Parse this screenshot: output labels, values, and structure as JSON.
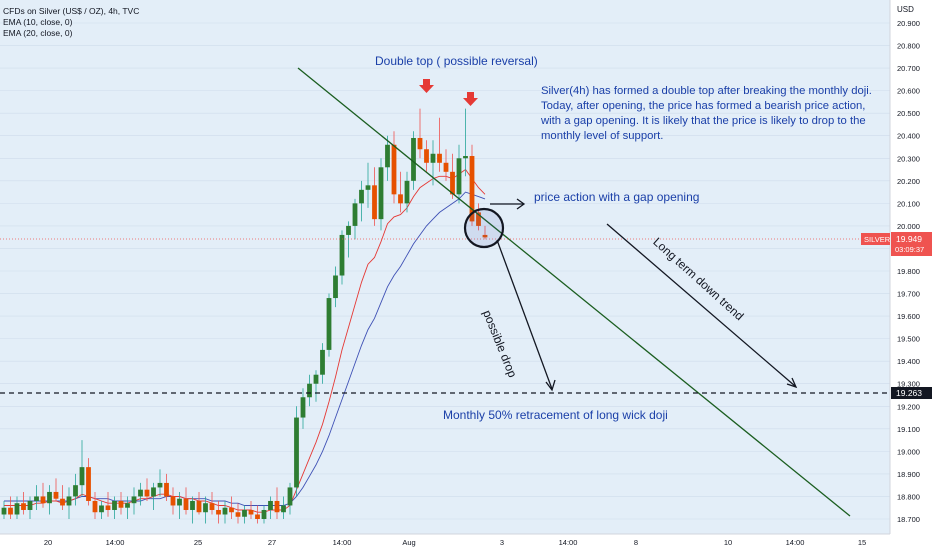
{
  "header": {
    "title": "CFDs on Silver (US$ / OZ), 4h, TVC",
    "indicators": [
      "EMA (10, close, 0)",
      "EMA (20, close, 0)"
    ]
  },
  "annotations": {
    "double_top": "Double top ( possible reversal)",
    "description": "Silver(4h) has formed a double top after breaking the monthly doji. Today, after opening, the price has formed a bearish price action, with a gap opening. It is likely that the price is likely to drop to the monthly level of support.",
    "gap": "price action with a gap opening",
    "drop": "possible drop",
    "trend": "Long term down trend",
    "support": "Monthly 50% retracement of long wick doji"
  },
  "price_labels": {
    "currency": "USD",
    "symbol": "SILVER",
    "last_price": "19.949",
    "countdown": "03:09:37",
    "support_level": "19.263"
  },
  "colors": {
    "up": "#26a69a",
    "up_body": "#2e7d32",
    "down": "#ef5350",
    "down_body": "#e65100",
    "ema10": "#e53935",
    "ema20": "#3f51b5",
    "background": "#e3eef8",
    "annotation": "#1a3fa8",
    "trendline": "#1b5e20"
  },
  "chart_data": {
    "type": "candlestick",
    "y_axis": {
      "min": 18.7,
      "max": 20.9,
      "ticks": [
        "18.700",
        "18.800",
        "18.900",
        "19.000",
        "19.100",
        "19.200",
        "19.300",
        "19.400",
        "19.500",
        "19.600",
        "19.700",
        "19.800",
        "19.900",
        "20.000",
        "20.100",
        "20.200",
        "20.300",
        "20.400",
        "20.500",
        "20.600",
        "20.700",
        "20.800",
        "20.900"
      ]
    },
    "x_axis": {
      "ticks": [
        "20",
        "14:00",
        "25",
        "27",
        "14:00",
        "Aug",
        "3",
        "14:00",
        "8",
        "10",
        "14:00",
        "15"
      ]
    },
    "ohlc": [
      [
        18.72,
        18.78,
        18.7,
        18.75
      ],
      [
        18.75,
        18.8,
        18.7,
        18.72
      ],
      [
        18.72,
        18.8,
        18.7,
        18.77
      ],
      [
        18.77,
        18.82,
        18.72,
        18.74
      ],
      [
        18.74,
        18.8,
        18.7,
        18.78
      ],
      [
        18.78,
        18.85,
        18.74,
        18.8
      ],
      [
        18.8,
        18.86,
        18.75,
        18.77
      ],
      [
        18.77,
        18.85,
        18.72,
        18.82
      ],
      [
        18.82,
        18.88,
        18.78,
        18.79
      ],
      [
        18.79,
        18.85,
        18.74,
        18.76
      ],
      [
        18.76,
        18.84,
        18.7,
        18.8
      ],
      [
        18.8,
        18.9,
        18.76,
        18.85
      ],
      [
        18.85,
        19.05,
        18.8,
        18.93
      ],
      [
        18.93,
        18.97,
        18.76,
        18.78
      ],
      [
        18.78,
        18.82,
        18.7,
        18.73
      ],
      [
        18.73,
        18.78,
        18.7,
        18.76
      ],
      [
        18.76,
        18.82,
        18.71,
        18.74
      ],
      [
        18.74,
        18.8,
        18.7,
        18.78
      ],
      [
        18.78,
        18.82,
        18.72,
        18.75
      ],
      [
        18.75,
        18.8,
        18.7,
        18.77
      ],
      [
        18.77,
        18.84,
        18.72,
        18.8
      ],
      [
        18.8,
        18.86,
        18.76,
        18.83
      ],
      [
        18.83,
        18.88,
        18.78,
        18.8
      ],
      [
        18.8,
        18.86,
        18.74,
        18.84
      ],
      [
        18.84,
        18.92,
        18.8,
        18.86
      ],
      [
        18.86,
        18.9,
        18.78,
        18.8
      ],
      [
        18.8,
        18.84,
        18.72,
        18.76
      ],
      [
        18.76,
        18.82,
        18.7,
        18.79
      ],
      [
        18.79,
        18.84,
        18.72,
        18.74
      ],
      [
        18.74,
        18.8,
        18.68,
        18.78
      ],
      [
        18.78,
        18.82,
        18.72,
        18.73
      ],
      [
        18.73,
        18.8,
        18.68,
        18.77
      ],
      [
        18.77,
        18.82,
        18.72,
        18.74
      ],
      [
        18.74,
        18.78,
        18.68,
        18.72
      ],
      [
        18.72,
        18.78,
        18.68,
        18.75
      ],
      [
        18.75,
        18.8,
        18.7,
        18.73
      ],
      [
        18.73,
        18.77,
        18.68,
        18.71
      ],
      [
        18.71,
        18.76,
        18.68,
        18.74
      ],
      [
        18.74,
        18.78,
        18.7,
        18.72
      ],
      [
        18.72,
        18.76,
        18.68,
        18.7
      ],
      [
        18.7,
        18.76,
        18.68,
        18.74
      ],
      [
        18.74,
        18.8,
        18.7,
        18.78
      ],
      [
        18.78,
        18.84,
        18.7,
        18.73
      ],
      [
        18.73,
        18.8,
        18.7,
        18.76
      ],
      [
        18.76,
        18.86,
        18.72,
        18.84
      ],
      [
        18.84,
        19.2,
        18.8,
        19.15
      ],
      [
        19.15,
        19.28,
        19.1,
        19.24
      ],
      [
        19.24,
        19.34,
        19.2,
        19.3
      ],
      [
        19.3,
        19.36,
        19.22,
        19.34
      ],
      [
        19.34,
        19.48,
        19.3,
        19.45
      ],
      [
        19.45,
        19.7,
        19.42,
        19.68
      ],
      [
        19.68,
        19.82,
        19.64,
        19.78
      ],
      [
        19.78,
        19.98,
        19.74,
        19.96
      ],
      [
        19.96,
        20.02,
        19.86,
        20.0
      ],
      [
        20.0,
        20.12,
        19.94,
        20.1
      ],
      [
        20.1,
        20.2,
        20.02,
        20.16
      ],
      [
        20.16,
        20.28,
        20.08,
        20.18
      ],
      [
        20.18,
        20.26,
        20.0,
        20.03
      ],
      [
        20.03,
        20.3,
        19.98,
        20.26
      ],
      [
        20.26,
        20.4,
        20.2,
        20.36
      ],
      [
        20.36,
        20.42,
        20.1,
        20.14
      ],
      [
        20.14,
        20.24,
        20.06,
        20.1
      ],
      [
        20.1,
        20.24,
        20.06,
        20.2
      ],
      [
        20.2,
        20.42,
        20.16,
        20.39
      ],
      [
        20.39,
        20.52,
        20.3,
        20.34
      ],
      [
        20.34,
        20.38,
        20.24,
        20.28
      ],
      [
        20.28,
        20.38,
        20.18,
        20.32
      ],
      [
        20.32,
        20.48,
        20.24,
        20.28
      ],
      [
        20.28,
        20.34,
        20.2,
        20.24
      ],
      [
        20.24,
        20.32,
        20.12,
        20.14
      ],
      [
        20.14,
        20.36,
        20.1,
        20.3
      ],
      [
        20.3,
        20.52,
        20.22,
        20.31
      ],
      [
        20.31,
        20.36,
        20.0,
        20.02
      ],
      [
        20.06,
        20.1,
        19.98,
        20.0
      ],
      [
        19.96,
        20.0,
        19.94,
        19.949
      ]
    ],
    "ema10": [
      18.76,
      18.76,
      18.76,
      18.76,
      18.76,
      18.77,
      18.77,
      18.78,
      18.78,
      18.77,
      18.78,
      18.79,
      18.81,
      18.8,
      18.79,
      18.78,
      18.77,
      18.77,
      18.77,
      18.77,
      18.78,
      18.79,
      18.79,
      18.8,
      18.81,
      18.81,
      18.8,
      18.8,
      18.79,
      18.79,
      18.78,
      18.78,
      18.77,
      18.76,
      18.76,
      18.75,
      18.74,
      18.74,
      18.74,
      18.73,
      18.73,
      18.74,
      18.74,
      18.74,
      18.76,
      18.83,
      18.9,
      18.97,
      19.04,
      19.12,
      19.22,
      19.33,
      19.45,
      19.55,
      19.65,
      19.75,
      19.83,
      19.86,
      19.93,
      20.01,
      20.04,
      20.05,
      20.08,
      20.13,
      20.17,
      20.19,
      20.21,
      20.22,
      20.22,
      20.21,
      20.23,
      20.25,
      20.21,
      20.17,
      20.14
    ],
    "ema20": [
      18.78,
      18.78,
      18.78,
      18.78,
      18.78,
      18.78,
      18.78,
      18.78,
      18.78,
      18.78,
      18.78,
      18.79,
      18.8,
      18.8,
      18.79,
      18.79,
      18.79,
      18.78,
      18.78,
      18.78,
      18.78,
      18.78,
      18.79,
      18.79,
      18.79,
      18.8,
      18.8,
      18.8,
      18.79,
      18.79,
      18.79,
      18.79,
      18.78,
      18.78,
      18.78,
      18.77,
      18.77,
      18.76,
      18.76,
      18.76,
      18.76,
      18.76,
      18.76,
      18.76,
      18.77,
      18.8,
      18.84,
      18.89,
      18.94,
      19.0,
      19.07,
      19.15,
      19.23,
      19.31,
      19.39,
      19.47,
      19.54,
      19.59,
      19.66,
      19.73,
      19.78,
      19.82,
      19.87,
      19.92,
      19.96,
      20.0,
      20.03,
      20.06,
      20.08,
      20.1,
      20.12,
      20.15,
      20.14,
      20.13,
      20.12
    ]
  }
}
